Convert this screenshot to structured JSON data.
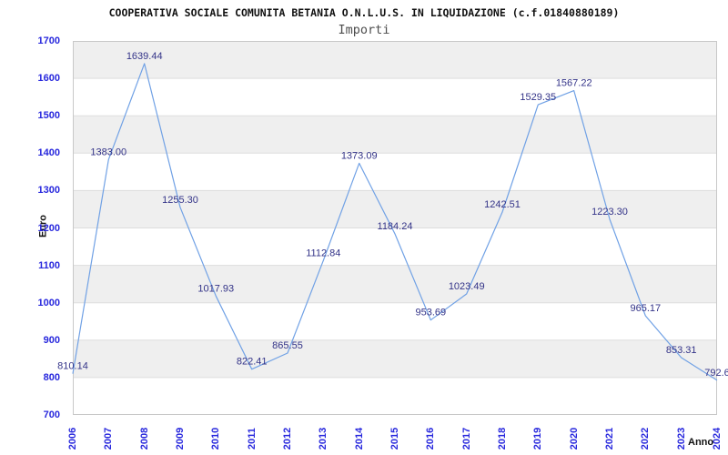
{
  "chart_data": {
    "type": "line",
    "title": "COOPERATIVA SOCIALE COMUNITA BETANIA O.N.L.U.S. IN LIQUIDAZIONE (c.f.01840880189)",
    "subtitle": "Importi",
    "xlabel": "Anno",
    "ylabel": "Euro",
    "x_ticks": [
      "2006",
      "2007",
      "2008",
      "2009",
      "2010",
      "2011",
      "2012",
      "2013",
      "2014",
      "2015",
      "2016",
      "2017",
      "2018",
      "2019",
      "2020",
      "2021",
      "2022",
      "2023",
      "2024"
    ],
    "y_ticks": [
      "1700",
      "1600",
      "1500",
      "1400",
      "1300",
      "1200",
      "1100",
      "1000",
      "900",
      "800",
      "700"
    ],
    "series": [
      {
        "name": "Importi",
        "values": [
          810.14,
          1383.0,
          1639.44,
          1255.3,
          1017.93,
          822.41,
          865.55,
          1112.84,
          1373.09,
          1184.24,
          953.69,
          1023.49,
          1242.51,
          1529.35,
          1567.22,
          1223.3,
          965.17,
          853.31,
          792.6
        ],
        "point_labels": [
          "810.14",
          "1383.00",
          "1639.44",
          "1255.30",
          "1017.93",
          "822.41",
          "865.55",
          "1112.84",
          "1373.09",
          "1184.24",
          "953.69",
          "1023.49",
          "1242.51",
          "1529.35",
          "1567.22",
          "1223.30",
          "965.17",
          "853.31",
          "792.6"
        ]
      }
    ],
    "ylim": [
      700,
      1700
    ],
    "ytick_step": 100,
    "grid": "horizontal-bands",
    "legend_position": "none",
    "colors": {
      "line": "#70a1e5",
      "band_gray": "#efefef",
      "grid_line": "#dddddd",
      "plot_border": "#c8c8c8",
      "tick_label": "#2828dd",
      "point_label": "#333388",
      "title": "#111111",
      "subtitle": "#4d4d4d",
      "axis_title": "#111111",
      "background": "#ffffff"
    }
  }
}
